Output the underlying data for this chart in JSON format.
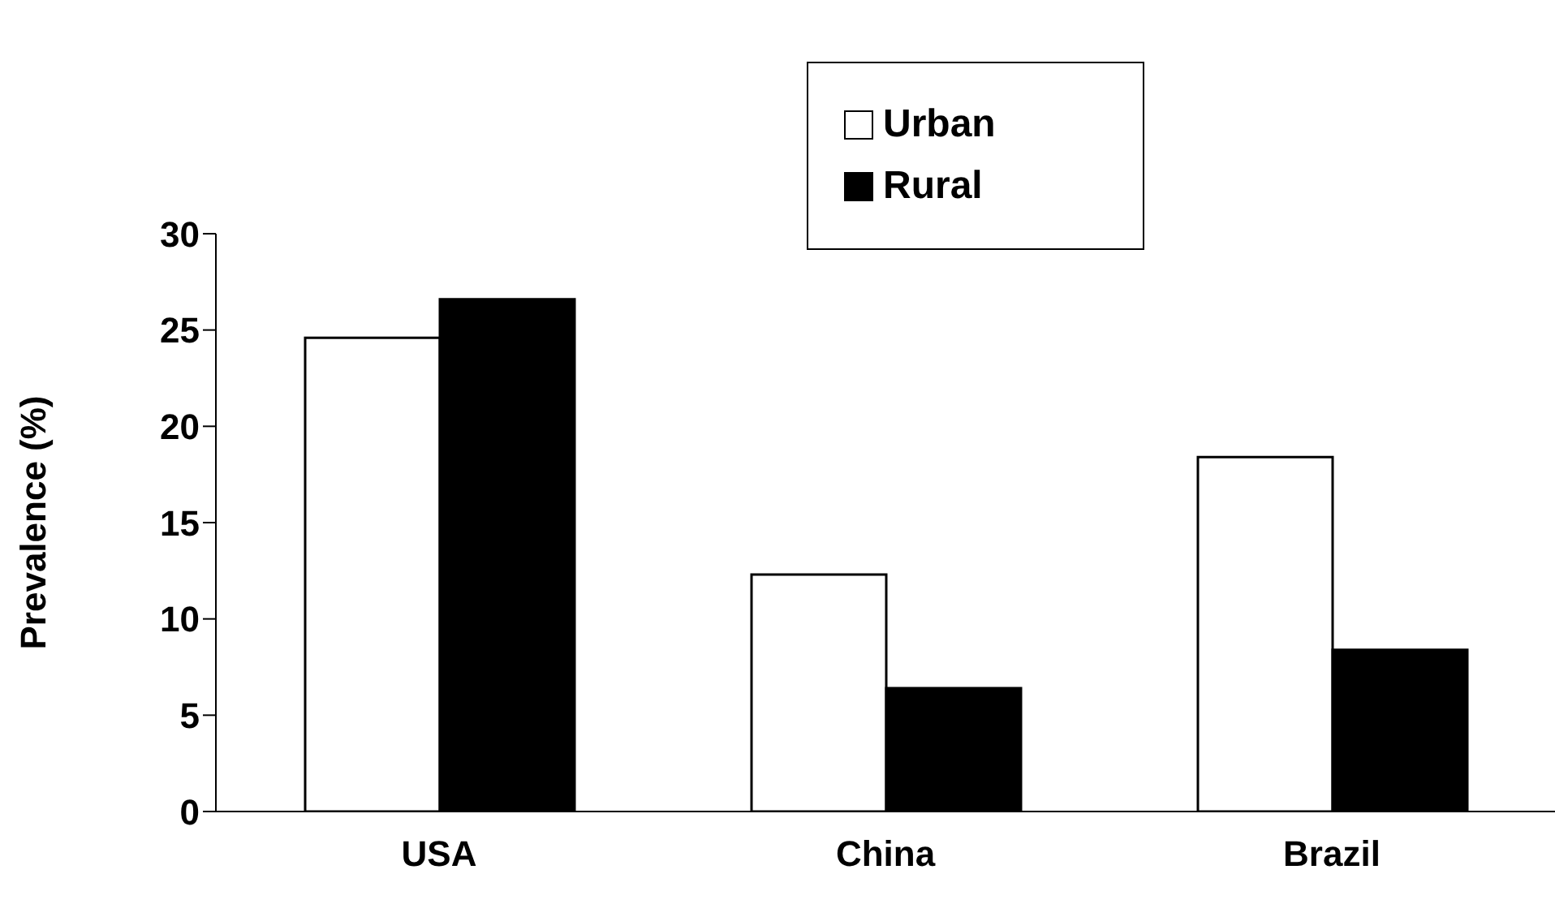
{
  "chart_data": {
    "type": "bar",
    "ylabel": "Prevalence (%)",
    "categories": [
      "USA",
      "China",
      "Brazil"
    ],
    "series": [
      {
        "name": "Urban",
        "color": "#ffffff",
        "values": [
          24.6,
          12.3,
          18.4
        ]
      },
      {
        "name": "Rural",
        "color": "#000000",
        "values": [
          26.6,
          6.4,
          8.4
        ]
      }
    ],
    "ylim": [
      0,
      30
    ],
    "yticks": [
      0,
      5,
      10,
      15,
      20,
      25,
      30
    ],
    "grid": false,
    "legend": "top"
  }
}
